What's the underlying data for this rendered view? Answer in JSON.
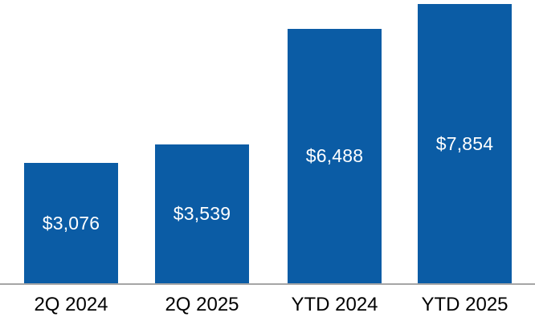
{
  "chart_data": {
    "type": "bar",
    "title": "",
    "xlabel": "",
    "ylabel": "",
    "categories": [
      "2Q 2024",
      "2Q 2025",
      "YTD 2024",
      "YTD 2025"
    ],
    "values": [
      3076,
      3539,
      6488,
      7854
    ],
    "value_labels": [
      "$3,076",
      "$3,539",
      "$6,488",
      "$7,854"
    ],
    "ylim": [
      0,
      8000
    ],
    "grid": false,
    "legend": "none",
    "value_label_position": "inside-center",
    "colors": {
      "bar": "#0B5CA5",
      "value_label": "#FFFFFF",
      "category_label": "#000000",
      "axis_line": "#A6A6A6",
      "background": "#FFFFFF"
    }
  }
}
